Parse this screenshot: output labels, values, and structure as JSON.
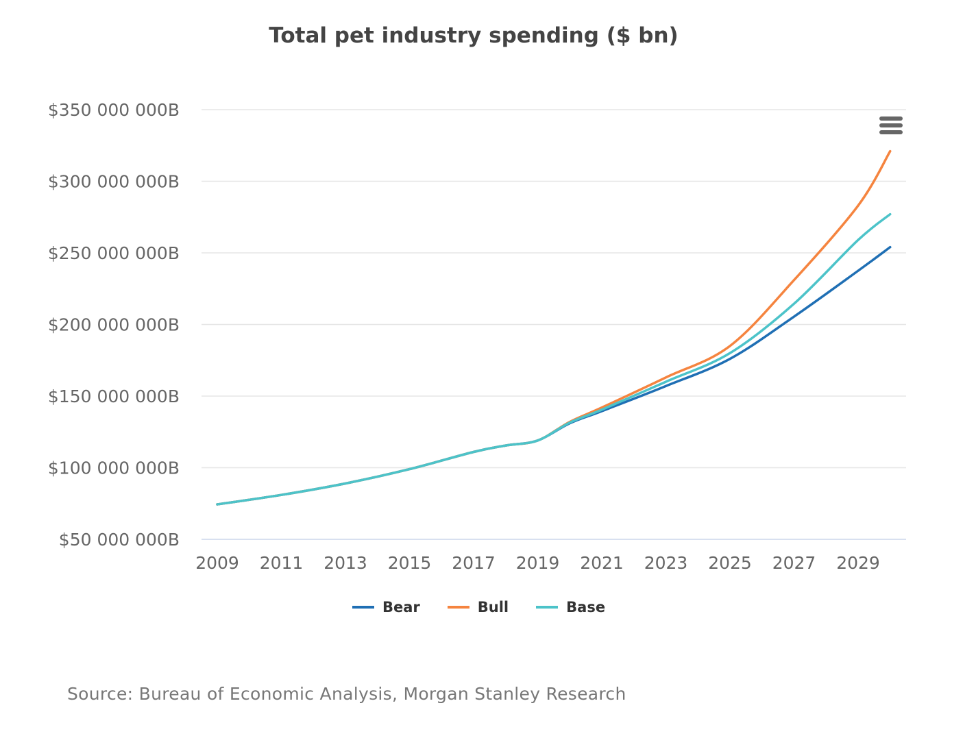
{
  "chart_data": {
    "type": "line",
    "title": "Total pet industry spending ($ bn)",
    "xlabel": "",
    "ylabel": "",
    "x": [
      2009,
      2011,
      2013,
      2015,
      2017,
      2018,
      2019,
      2020,
      2021,
      2023,
      2025,
      2027,
      2029,
      2030
    ],
    "series": [
      {
        "name": "Bear",
        "color": "#1f6fb4",
        "values": [
          74.4,
          81,
          89,
          99,
          111,
          115.5,
          119,
          131,
          139.5,
          157,
          176,
          205.5,
          237.5,
          254
        ]
      },
      {
        "name": "Bull",
        "color": "#f5843f",
        "values": [
          74.4,
          81,
          89,
          99,
          111,
          115.5,
          119,
          132,
          142,
          163,
          185,
          231,
          283,
          321
        ]
      },
      {
        "name": "Base",
        "color": "#4cc3c9",
        "values": [
          74.4,
          81,
          89,
          99,
          111,
          115.5,
          119,
          131.5,
          140.5,
          160,
          180,
          214.5,
          259,
          277
        ]
      }
    ],
    "xticks": [
      "2009",
      "2011",
      "2013",
      "2015",
      "2017",
      "2019",
      "2021",
      "2023",
      "2025",
      "2027",
      "2029"
    ],
    "yticks": [
      {
        "value": 50,
        "label": "$50 000 000B"
      },
      {
        "value": 100,
        "label": "$100 000 000B"
      },
      {
        "value": 150,
        "label": "$150 000 000B"
      },
      {
        "value": 200,
        "label": "$200 000 000B"
      },
      {
        "value": 250,
        "label": "$250 000 000B"
      },
      {
        "value": 300,
        "label": "$300 000 000B"
      },
      {
        "value": 350,
        "label": "$350 000 000B"
      }
    ],
    "ylim": [
      50,
      350
    ],
    "xlim": [
      2008.5,
      2031
    ],
    "grid": true,
    "legend_position": "bottom-center"
  },
  "source": "Source: Bureau of Economic Analysis, Morgan Stanley Research",
  "menu_icon": "hamburger-menu-icon"
}
